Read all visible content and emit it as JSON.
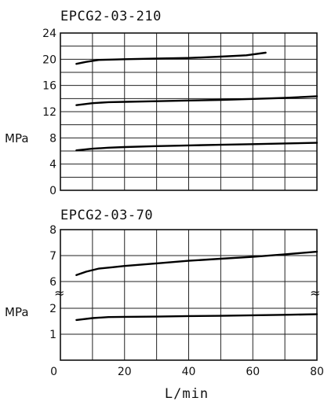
{
  "chart_data": [
    {
      "type": "line",
      "title": "EPCG2-03-210",
      "ylabel": "MPa",
      "ylim": [
        0,
        24
      ],
      "yticks": [
        "0",
        "4",
        "8",
        "12",
        "16",
        "20",
        "24"
      ],
      "xlim": [
        0,
        80
      ],
      "grid": true,
      "series": [
        {
          "x": [
            5,
            8,
            12,
            20,
            30,
            40,
            50,
            58,
            64
          ],
          "y": [
            19.3,
            19.6,
            19.9,
            20.0,
            20.1,
            20.2,
            20.4,
            20.6,
            21.0
          ]
        },
        {
          "x": [
            5,
            10,
            15,
            20,
            30,
            40,
            50,
            60,
            70,
            80
          ],
          "y": [
            13.0,
            13.3,
            13.45,
            13.5,
            13.6,
            13.7,
            13.8,
            13.95,
            14.1,
            14.35
          ]
        },
        {
          "x": [
            5,
            10,
            15,
            20,
            30,
            40,
            50,
            60,
            70,
            80
          ],
          "y": [
            6.1,
            6.35,
            6.5,
            6.6,
            6.75,
            6.85,
            6.95,
            7.05,
            7.15,
            7.25
          ]
        }
      ]
    },
    {
      "type": "line",
      "title": "EPCG2-03-70",
      "ylabel": "MPa",
      "yticks": [
        "1",
        "2",
        "6",
        "7",
        "8"
      ],
      "axis_break": true,
      "xlim": [
        0,
        80
      ],
      "xticks": [
        "0",
        "20",
        "40",
        "60",
        "80"
      ],
      "xlabel": "L/min",
      "grid": true,
      "series": [
        {
          "x": [
            5,
            8,
            12,
            16,
            20,
            30,
            40,
            50,
            60,
            70,
            80
          ],
          "y": [
            6.25,
            6.38,
            6.5,
            6.55,
            6.6,
            6.7,
            6.8,
            6.88,
            6.95,
            7.05,
            7.15
          ]
        },
        {
          "x": [
            5,
            10,
            15,
            20,
            30,
            40,
            50,
            60,
            70,
            80
          ],
          "y": [
            1.55,
            1.62,
            1.66,
            1.67,
            1.68,
            1.7,
            1.71,
            1.73,
            1.75,
            1.77
          ]
        }
      ]
    }
  ]
}
